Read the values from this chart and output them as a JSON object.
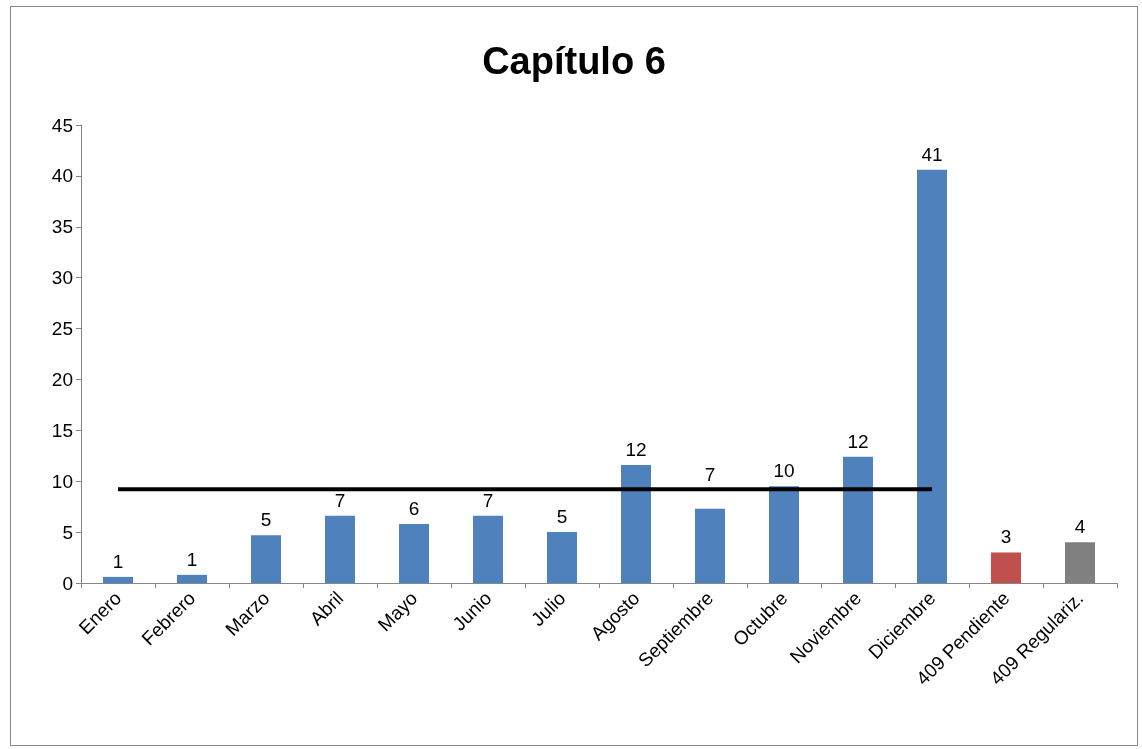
{
  "chart_data": {
    "type": "bar",
    "title": "Capítulo 6",
    "categories": [
      "Enero",
      "Febrero",
      "Marzo",
      "Abril",
      "Mayo",
      "Junio",
      "Julio",
      "Agosto",
      "Septiembre",
      "Octubre",
      "Noviembre",
      "Diciembre",
      "409 Pendiente",
      "409 Regulariz."
    ],
    "series": [
      {
        "colors": [
          "#4f81bd",
          "#4f81bd",
          "#4f81bd",
          "#4f81bd",
          "#4f81bd",
          "#4f81bd",
          "#4f81bd",
          "#4f81bd",
          "#4f81bd",
          "#4f81bd",
          "#4f81bd",
          "#4f81bd",
          "#c0504d",
          "#808080"
        ],
        "values": [
          0.6,
          0.8,
          4.7,
          6.6,
          5.8,
          6.6,
          5.0,
          11.6,
          7.3,
          9.5,
          12.4,
          40.6,
          3.0,
          4.0
        ],
        "value_labels": [
          "1",
          "1",
          "5",
          "7",
          "6",
          "7",
          "5",
          "12",
          "7",
          "10",
          "12",
          "41",
          "3",
          "4"
        ]
      },
      {
        "type": "line",
        "color": "#000000",
        "marker": "none",
        "values": [
          9.2,
          9.2,
          9.2,
          9.2,
          9.2,
          9.2,
          9.2,
          9.2,
          9.2,
          9.2,
          9.2,
          9.2,
          null,
          null
        ]
      }
    ],
    "ylim": [
      0,
      45
    ],
    "yticks": [
      0,
      5,
      10,
      15,
      20,
      25,
      30,
      35,
      40,
      45
    ]
  }
}
